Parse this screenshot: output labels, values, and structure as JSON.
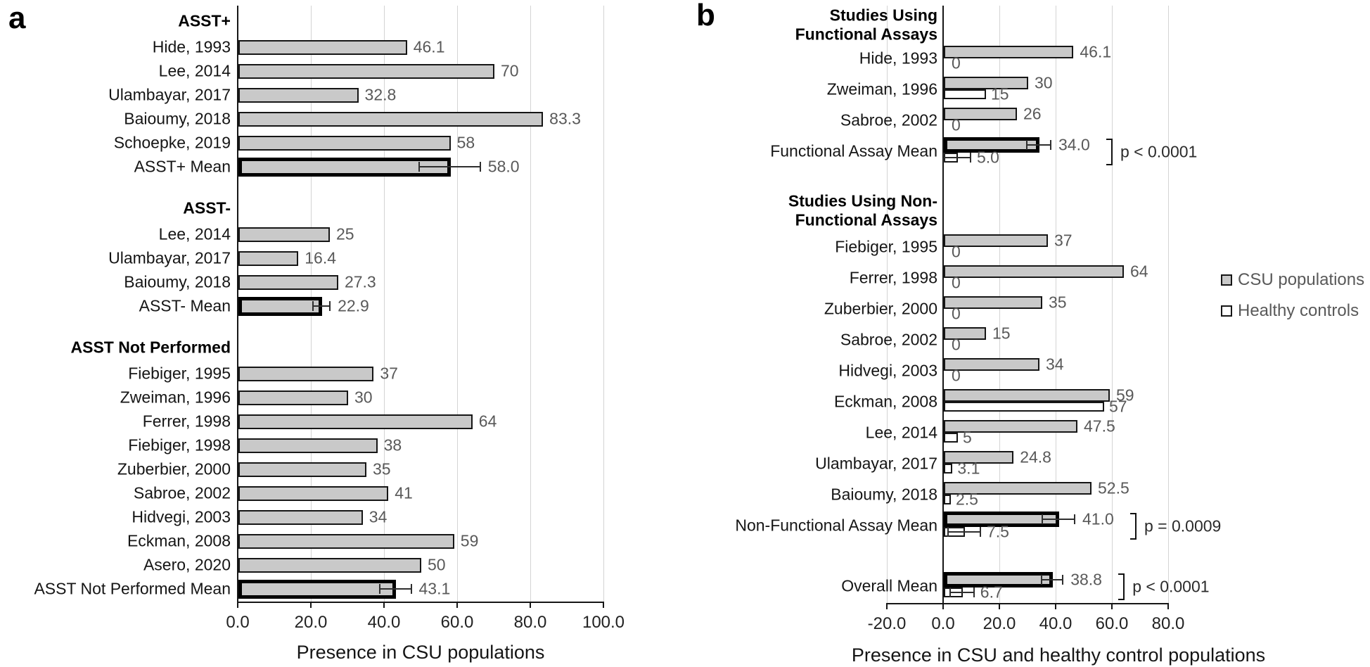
{
  "figure": {
    "panel_a_letter": "a",
    "panel_b_letter": "b"
  },
  "legend": {
    "items": [
      {
        "label": "CSU populations",
        "fill": "#c9c9c9"
      },
      {
        "label": "Healthy controls",
        "fill": "#ffffff"
      }
    ]
  },
  "colors": {
    "bar_fill": "#c9c9c9",
    "healthy_fill": "#ffffff",
    "bar_border": "#161616",
    "mean_border": "#000000",
    "gridline": "#d4d4d4",
    "axis": "#161616",
    "value_label": "#595959",
    "category_label": "#151515",
    "error_bar": "#2e2e2e"
  },
  "chart_data": [
    {
      "id": "panel-a",
      "type": "bar",
      "orientation": "horizontal",
      "xlabel": "Presence in CSU populations",
      "xlim": [
        0,
        100
      ],
      "xticks": [
        0,
        20,
        40,
        60,
        80,
        100
      ],
      "xtick_labels": [
        "0.0",
        "20.0",
        "40.0",
        "60.0",
        "80.0",
        "100.0"
      ],
      "grid": true,
      "groups": [
        {
          "header": "ASST+",
          "bars": [
            {
              "label": "Hide, 1993",
              "value": 46.1,
              "display": "46.1"
            },
            {
              "label": "Lee, 2014",
              "value": 70,
              "display": "70"
            },
            {
              "label": "Ulambayar, 2017",
              "value": 32.8,
              "display": "32.8"
            },
            {
              "label": "Baioumy, 2018",
              "value": 83.3,
              "display": "83.3"
            },
            {
              "label": "Schoepke, 2019",
              "value": 58,
              "display": "58"
            },
            {
              "label": "ASST+ Mean",
              "value": 58.0,
              "display": "58.0",
              "mean": true,
              "error": 8.5
            }
          ]
        },
        {
          "header": "ASST-",
          "bars": [
            {
              "label": "Lee, 2014",
              "value": 25,
              "display": "25"
            },
            {
              "label": "Ulambayar, 2017",
              "value": 16.4,
              "display": "16.4"
            },
            {
              "label": "Baioumy, 2018",
              "value": 27.3,
              "display": "27.3"
            },
            {
              "label": "ASST- Mean",
              "value": 22.9,
              "display": "22.9",
              "mean": true,
              "error": 2.5
            }
          ]
        },
        {
          "header": "ASST Not Performed",
          "bars": [
            {
              "label": "Fiebiger, 1995",
              "value": 37,
              "display": "37"
            },
            {
              "label": "Zweiman, 1996",
              "value": 30,
              "display": "30"
            },
            {
              "label": "Ferrer, 1998",
              "value": 64,
              "display": "64"
            },
            {
              "label": "Fiebiger, 1998",
              "value": 38,
              "display": "38"
            },
            {
              "label": "Zuberbier, 2000",
              "value": 35,
              "display": "35"
            },
            {
              "label": "Sabroe, 2002",
              "value": 41,
              "display": "41"
            },
            {
              "label": "Hidvegi, 2003",
              "value": 34,
              "display": "34"
            },
            {
              "label": "Eckman, 2008",
              "value": 59,
              "display": "59"
            },
            {
              "label": "Asero, 2020",
              "value": 50,
              "display": "50"
            },
            {
              "label": "ASST Not Performed Mean",
              "value": 43.1,
              "display": "43.1",
              "mean": true,
              "error": 4.5
            }
          ]
        }
      ]
    },
    {
      "id": "panel-b",
      "type": "bar",
      "orientation": "horizontal",
      "xlabel": "Presence in CSU and healthy control populations",
      "xlim": [
        -20,
        80
      ],
      "xticks": [
        -20,
        0,
        20,
        40,
        60,
        80
      ],
      "xtick_labels": [
        "-20.0",
        "0.0",
        "20.0",
        "40.0",
        "60.0",
        "80.0"
      ],
      "grid": true,
      "series_names": [
        "CSU populations",
        "Healthy controls"
      ],
      "groups": [
        {
          "header": [
            "Studies Using",
            "Functional Assays"
          ],
          "rows": [
            {
              "label": "Hide, 1993",
              "csu": 46.1,
              "csu_display": "46.1",
              "hc": 0,
              "hc_display": "0"
            },
            {
              "label": "Zweiman, 1996",
              "csu": 30,
              "csu_display": "30",
              "hc": 15,
              "hc_display": "15"
            },
            {
              "label": "Sabroe, 2002",
              "csu": 26,
              "csu_display": "26",
              "hc": 0,
              "hc_display": "0"
            },
            {
              "label": "Functional Assay Mean",
              "csu": 34.0,
              "csu_display": "34.0",
              "csu_error": 4.5,
              "hc": 5.0,
              "hc_display": "5.0",
              "hc_error": 5.0,
              "mean": true,
              "p": "p < 0.0001"
            }
          ]
        },
        {
          "header": [
            "Studies Using Non-",
            "Functional Assays"
          ],
          "rows": [
            {
              "label": "Fiebiger, 1995",
              "csu": 37,
              "csu_display": "37",
              "hc": 0,
              "hc_display": "0"
            },
            {
              "label": "Ferrer, 1998",
              "csu": 64,
              "csu_display": "64",
              "hc": 0,
              "hc_display": "0"
            },
            {
              "label": "Zuberbier, 2000",
              "csu": 35,
              "csu_display": "35",
              "hc": 0,
              "hc_display": "0"
            },
            {
              "label": "Sabroe, 2002",
              "csu": 15,
              "csu_display": "15",
              "hc": 0,
              "hc_display": "0"
            },
            {
              "label": "Hidvegi, 2003",
              "csu": 34,
              "csu_display": "34",
              "hc": 0,
              "hc_display": "0"
            },
            {
              "label": "Eckman, 2008",
              "csu": 59,
              "csu_display": "59",
              "hc": 57,
              "hc_display": "57"
            },
            {
              "label": "Lee, 2014",
              "csu": 47.5,
              "csu_display": "47.5",
              "hc": 5,
              "hc_display": "5"
            },
            {
              "label": "Ulambayar, 2017",
              "csu": 24.8,
              "csu_display": "24.8",
              "hc": 3.1,
              "hc_display": "3.1"
            },
            {
              "label": "Baioumy, 2018",
              "csu": 52.5,
              "csu_display": "52.5",
              "hc": 2.5,
              "hc_display": "2.5"
            },
            {
              "label": "Non-Functional Assay Mean",
              "csu": 41.0,
              "csu_display": "41.0",
              "csu_error": 6.0,
              "hc": 7.5,
              "hc_display": "7.5",
              "hc_error": 6.0,
              "mean": true,
              "p": "p = 0.0009"
            }
          ]
        },
        {
          "header": null,
          "rows": [
            {
              "label": "Overall Mean",
              "csu": 38.8,
              "csu_display": "38.8",
              "csu_error": 4.0,
              "hc": 6.7,
              "hc_display": "6.7",
              "hc_error": 4.5,
              "mean": true,
              "p": "p < 0.0001"
            }
          ]
        }
      ]
    }
  ]
}
